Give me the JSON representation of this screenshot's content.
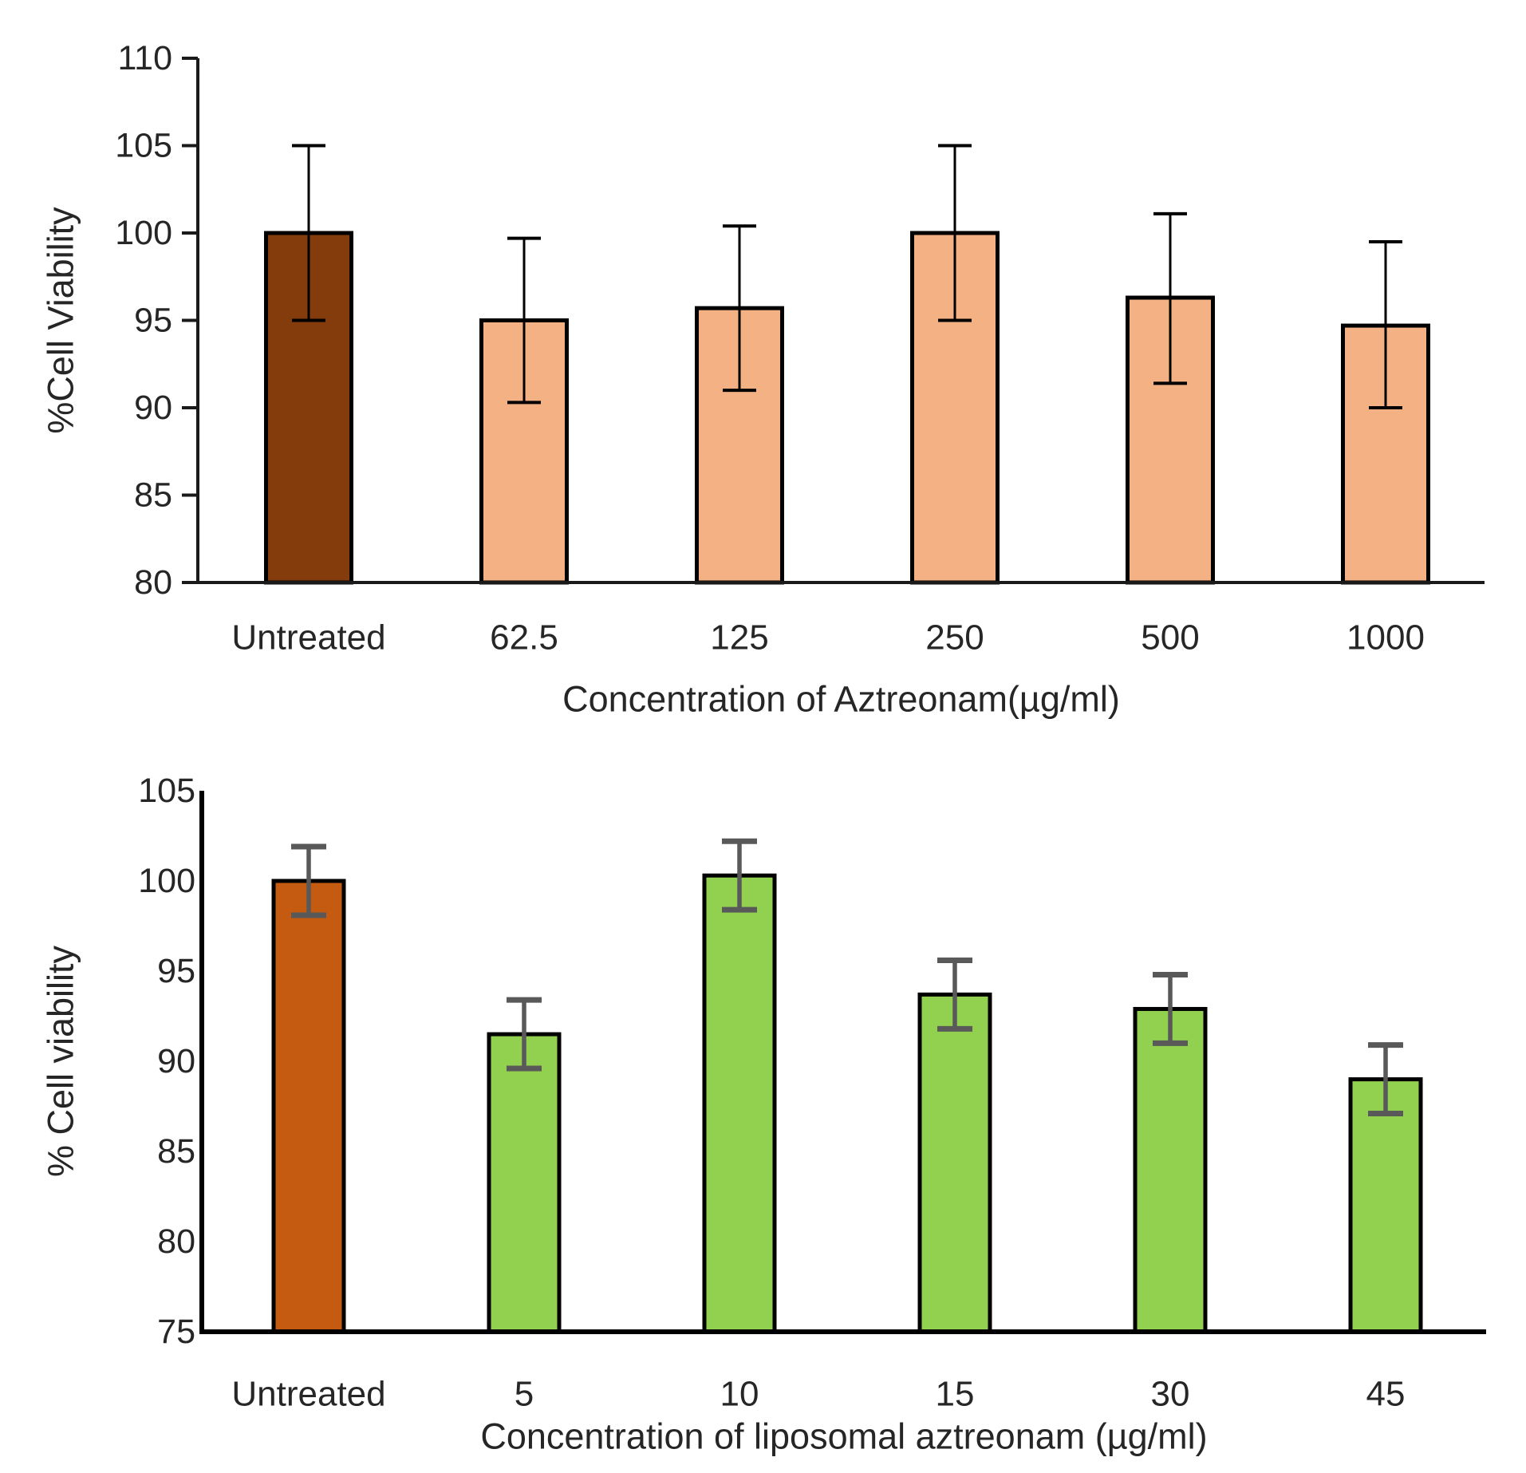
{
  "figure": {
    "background": "#ffffff",
    "text_color": "#262626"
  },
  "chart_data": [
    {
      "id": "aztreonam-viability",
      "type": "bar",
      "title": "",
      "xlabel": "Concentration of Aztreonam(µg/ml)",
      "ylabel": "%Cell Viability",
      "categories": [
        "Untreated",
        "62.5",
        "125",
        "250",
        "500",
        "1000"
      ],
      "values": [
        100,
        95,
        95.7,
        100,
        96.3,
        94.7
      ],
      "error_up": [
        5,
        4.7,
        4.7,
        5,
        4.8,
        4.8
      ],
      "error_down": [
        5,
        4.7,
        4.7,
        5,
        4.9,
        4.7
      ],
      "ylim": [
        80,
        110
      ],
      "yticks": [
        80,
        85,
        90,
        95,
        100,
        105,
        110
      ],
      "grid": false,
      "legend": null,
      "bar_colors": [
        "#843C0C",
        "#F4B183",
        "#F4B183",
        "#F4B183",
        "#F4B183",
        "#F4B183"
      ],
      "bar_border_color": "#000000",
      "error_color": "#000000",
      "axis_color": "#1a1a1a"
    },
    {
      "id": "liposomal-aztreonam-viability",
      "type": "bar",
      "title": "",
      "xlabel": "Concentration of liposomal aztreonam (µg/ml)",
      "ylabel": "% Cell viability",
      "categories": [
        "Untreated",
        "5",
        "10",
        "15",
        "30",
        "45"
      ],
      "values": [
        100,
        91.5,
        100.3,
        93.7,
        92.9,
        89
      ],
      "error_up": [
        1.9,
        1.9,
        1.9,
        1.9,
        1.9,
        1.9
      ],
      "error_down": [
        1.9,
        1.9,
        1.9,
        1.9,
        1.9,
        1.9
      ],
      "ylim": [
        75,
        105
      ],
      "yticks": [
        75,
        80,
        85,
        90,
        95,
        100,
        105
      ],
      "grid": false,
      "legend": null,
      "bar_colors": [
        "#C55A11",
        "#92D050",
        "#92D050",
        "#92D050",
        "#92D050",
        "#92D050"
      ],
      "bar_border_color": "#000000",
      "error_color": "#595959",
      "axis_color": "#000000"
    }
  ]
}
